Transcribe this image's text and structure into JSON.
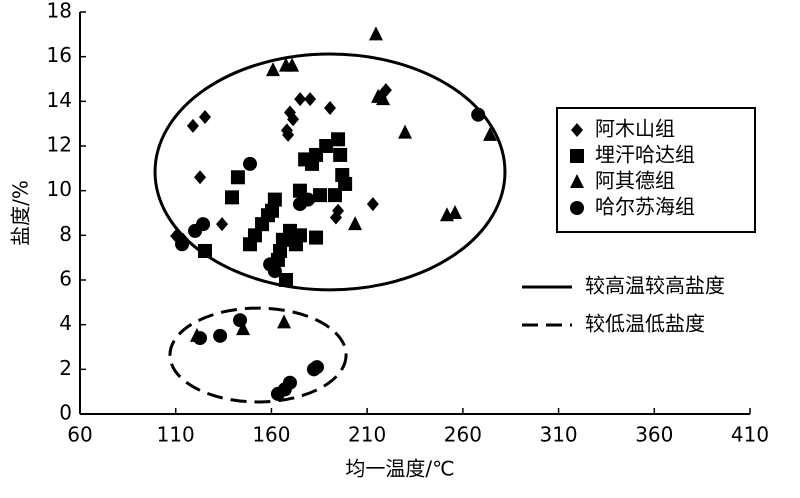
{
  "chart_data": {
    "type": "scatter",
    "x_label": "均一温度/℃",
    "y_label": "盐度/%",
    "xlim": [
      60,
      410
    ],
    "xticks": [
      60,
      110,
      160,
      210,
      260,
      310,
      360,
      410
    ],
    "ylim": [
      0,
      18
    ],
    "yticks": [
      0,
      2,
      4,
      6,
      8,
      10,
      12,
      14,
      16,
      18
    ],
    "grid": false,
    "legend": "upper right",
    "series": [
      {
        "name": "阿木山组",
        "marker": "diamond",
        "color": "#000000",
        "x": [
          110.2,
          113.8,
          119,
          125.3,
          122.7,
          134.2,
          169.7,
          171.3,
          168.1,
          168.7,
          175,
          180.2,
          190.6,
          194.8,
          193.7,
          213,
          216.7,
          219.8
        ],
        "y": [
          7.97,
          7.8,
          12.9,
          13.3,
          10.6,
          8.5,
          13.5,
          13.2,
          12.7,
          12.5,
          14.1,
          14.1,
          13.7,
          9.1,
          8.8,
          9.4,
          14.2,
          14.5
        ]
      },
      {
        "name": "埋汗哈达组",
        "marker": "square",
        "color": "#000000",
        "x": [
          125.3,
          139.4,
          142.5,
          148.8,
          151.4,
          155.1,
          158.2,
          160.3,
          161.8,
          163.4,
          164.5,
          166,
          167.6,
          169.7,
          172.8,
          174.9,
          174.9,
          177.6,
          181.2,
          183.3,
          185.4,
          188.6,
          194.8,
          195.9,
          197,
          198.5,
          183.3,
          193.2
        ],
        "y": [
          7.3,
          9.7,
          10.6,
          7.6,
          8,
          8.5,
          8.9,
          9.1,
          9.6,
          6.9,
          7.3,
          7.8,
          6,
          8.2,
          7.6,
          8,
          10,
          11.4,
          11.2,
          11.6,
          9.8,
          12,
          12.3,
          11.6,
          10.7,
          10.3,
          7.9,
          9.8
        ]
      },
      {
        "name": "阿其德组",
        "marker": "triangle",
        "color": "#000000",
        "x": [
          160.8,
          167.6,
          170.8,
          214.6,
          215.7,
          218.3,
          229.8,
          274.2,
          251.7,
          255.9,
          203.7,
          121.1,
          145.2,
          166.6
        ],
        "y": [
          15.4,
          15.6,
          15.6,
          17,
          14.2,
          14.1,
          12.6,
          12.5,
          8.9,
          9,
          8.5,
          3.5,
          3.8,
          4.1
        ]
      },
      {
        "name": "哈尔苏海组",
        "marker": "circle",
        "color": "#000000",
        "x": [
          113.3,
          120.1,
          124.3,
          148.8,
          268,
          174.9,
          179.1,
          159.3,
          161.8,
          122.7,
          133.2,
          143.6,
          163.4,
          167,
          169.7,
          182.2,
          183.8
        ],
        "y": [
          7.6,
          8.2,
          8.5,
          11.2,
          13.4,
          9.4,
          9.6,
          6.7,
          6.4,
          3.4,
          3.5,
          4.2,
          0.9,
          1.1,
          1.4,
          2,
          2.1
        ]
      }
    ],
    "ellipses": [
      {
        "label": "较高温较高盐度",
        "style": "solid",
        "center": [
          190.6,
          10.84
        ],
        "radii": [
          91.4,
          5.28
        ]
      },
      {
        "label": "较低温低盐度",
        "style": "dashed",
        "center": [
          153,
          2.64
        ],
        "radii": [
          46,
          2.1
        ]
      }
    ]
  }
}
